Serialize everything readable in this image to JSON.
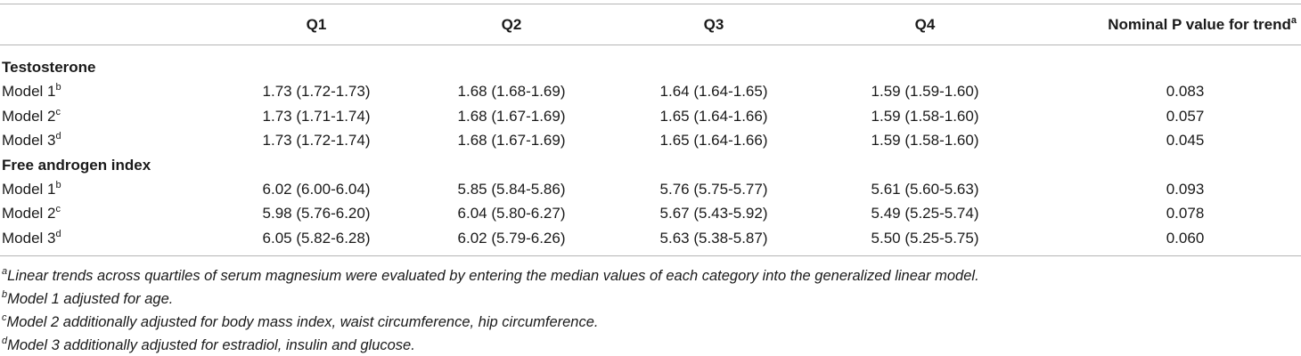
{
  "table": {
    "header": {
      "columns": [
        "Q1",
        "Q2",
        "Q3",
        "Q4",
        "Nominal P value for trend"
      ],
      "trend_sup": "a"
    },
    "sections": [
      {
        "title": "Testosterone",
        "rows": [
          {
            "label": "Model 1",
            "sup": "b",
            "cells": [
              "1.73 (1.72-1.73)",
              "1.68 (1.68-1.69)",
              "1.64 (1.64-1.65)",
              "1.59 (1.59-1.60)",
              "0.083"
            ]
          },
          {
            "label": "Model 2",
            "sup": "c",
            "cells": [
              "1.73 (1.71-1.74)",
              "1.68 (1.67-1.69)",
              "1.65 (1.64-1.66)",
              "1.59 (1.58-1.60)",
              "0.057"
            ]
          },
          {
            "label": "Model 3",
            "sup": "d",
            "cells": [
              "1.73 (1.72-1.74)",
              "1.68 (1.67-1.69)",
              "1.65 (1.64-1.66)",
              "1.59 (1.58-1.60)",
              "0.045"
            ]
          }
        ]
      },
      {
        "title": "Free androgen index",
        "rows": [
          {
            "label": "Model 1",
            "sup": "b",
            "cells": [
              "6.02 (6.00-6.04)",
              "5.85 (5.84-5.86)",
              "5.76 (5.75-5.77)",
              "5.61 (5.60-5.63)",
              "0.093"
            ]
          },
          {
            "label": "Model 2",
            "sup": "c",
            "cells": [
              "5.98 (5.76-6.20)",
              "6.04 (5.80-6.27)",
              "5.67 (5.43-5.92)",
              "5.49 (5.25-5.74)",
              "0.078"
            ]
          },
          {
            "label": "Model 3",
            "sup": "d",
            "cells": [
              "6.05 (5.82-6.28)",
              "6.02 (5.79-6.26)",
              "5.63 (5.38-5.87)",
              "5.50 (5.25-5.75)",
              "0.060"
            ]
          }
        ]
      }
    ],
    "footnotes": [
      {
        "sup": "a",
        "text": "Linear trends across quartiles of serum magnesium were evaluated by entering the median values of each category into the generalized linear model."
      },
      {
        "sup": "b",
        "text": "Model 1 adjusted for age."
      },
      {
        "sup": "c",
        "text": "Model 2 additionally adjusted for body mass index, waist circumference, hip circumference."
      },
      {
        "sup": "d",
        "text": "Model 3 additionally adjusted for estradiol, insulin and glucose."
      }
    ]
  }
}
